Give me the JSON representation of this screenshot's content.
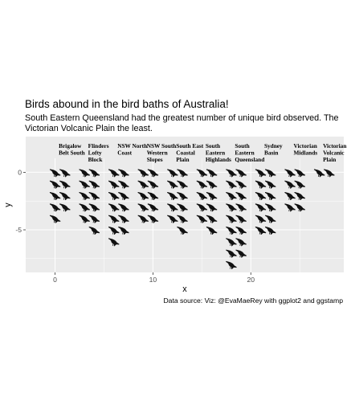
{
  "title": "Birds abound in the bird baths of Australia!",
  "subtitle": "South Eastern Queensland had the greatest number of unique bird observed. The Victorian Volcanic Plain the least.",
  "caption": "Data source:  Viz: @EvaMaeRey with ggplot2 and ggstamp",
  "colors": {
    "panel": "#ebebeb",
    "grid": "#ffffff",
    "bird": "#111111",
    "text": "#000000",
    "tick": "#4d4d4d"
  },
  "icon": "bird-icon",
  "chart_data": {
    "type": "scatter",
    "mark": "bird-icon pictogram",
    "xlabel": "x",
    "ylabel": "y",
    "xlim": [
      -3,
      29.5
    ],
    "ylim": [
      -8.7,
      3.1
    ],
    "xticks": [
      0,
      10,
      20
    ],
    "yticks": [
      0,
      -5
    ],
    "grid": true,
    "regions": [
      {
        "name": "Brigalow Belt South",
        "label_lines": [
          "Brigalow",
          "Belt South"
        ],
        "label_x": 0.7,
        "columns": [
          [
            0,
            5
          ],
          [
            1,
            4
          ]
        ]
      },
      {
        "name": "Flinders Lofty Block",
        "label_lines": [
          "Flinders",
          "Lofty",
          "Block"
        ],
        "label_x": 3.7,
        "columns": [
          [
            3,
            5
          ],
          [
            4,
            6
          ]
        ]
      },
      {
        "name": "NSW North Coast",
        "label_lines": [
          "NSW North",
          "Coast"
        ],
        "label_x": 6.7,
        "columns": [
          [
            6,
            7
          ],
          [
            7,
            6
          ]
        ]
      },
      {
        "name": "NSW South Western Slopes",
        "label_lines": [
          "NSW South",
          "Western",
          "Slopes"
        ],
        "label_x": 9.7,
        "columns": [
          [
            9,
            5
          ],
          [
            10,
            5
          ]
        ]
      },
      {
        "name": "South East Coastal Plain",
        "label_lines": [
          "South East",
          "Coastal",
          "Plain"
        ],
        "label_x": 12.7,
        "columns": [
          [
            12,
            5
          ],
          [
            13,
            6
          ]
        ]
      },
      {
        "name": "South Eastern Highlands",
        "label_lines": [
          "South",
          "Eastern",
          "Highlands"
        ],
        "label_x": 15.7,
        "columns": [
          [
            15,
            5
          ],
          [
            16,
            6
          ]
        ]
      },
      {
        "name": "South Eastern Queensland",
        "label_lines": [
          "South",
          "Eastern",
          "Queensland"
        ],
        "label_x": 18.7,
        "columns": [
          [
            18,
            9
          ],
          [
            19,
            8
          ]
        ]
      },
      {
        "name": "Sydney Basin",
        "label_lines": [
          "Sydney",
          "Basin"
        ],
        "label_x": 21.7,
        "columns": [
          [
            21,
            6
          ],
          [
            22,
            6
          ]
        ]
      },
      {
        "name": "Victorian Midlands",
        "label_lines": [
          "Victorian",
          "Midlands"
        ],
        "label_x": 24.7,
        "columns": [
          [
            24,
            4
          ],
          [
            25,
            4
          ]
        ]
      },
      {
        "name": "Victorian Volcanic Plain",
        "label_lines": [
          "Victorian",
          "Volcanic",
          "Plain"
        ],
        "label_x": 27.7,
        "columns": [
          [
            27,
            1
          ],
          [
            28,
            1
          ]
        ]
      }
    ]
  }
}
